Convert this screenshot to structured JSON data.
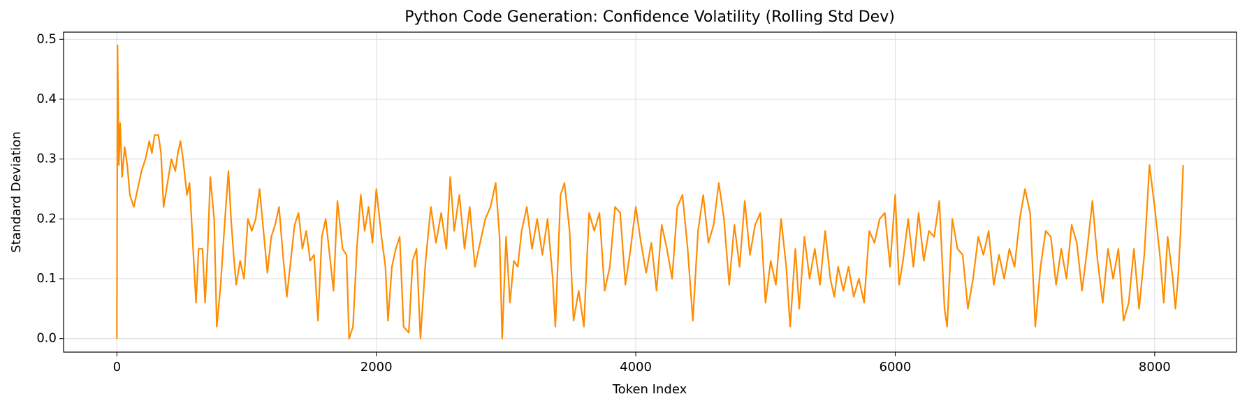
{
  "chart_data": {
    "type": "line",
    "title": "Python Code Generation: Confidence Volatility (Rolling Std Dev)",
    "x_label": "Token Index",
    "y_label": "Standard Deviation",
    "color": "#ff8c00",
    "grid": true,
    "xlim": [
      -411,
      8631
    ],
    "ylim": [
      -0.0225,
      0.512
    ],
    "xticks": [
      0,
      2000,
      4000,
      6000,
      8000
    ],
    "yticks": [
      {
        "value": 0,
        "label": "0.0"
      },
      0.1,
      0.2,
      0.3,
      0.4,
      0.5
    ],
    "x": [
      0,
      5,
      15,
      25,
      40,
      60,
      80,
      100,
      130,
      160,
      190,
      220,
      250,
      270,
      290,
      320,
      340,
      360,
      390,
      420,
      450,
      470,
      490,
      510,
      540,
      560,
      580,
      610,
      630,
      660,
      680,
      700,
      720,
      750,
      770,
      800,
      830,
      860,
      880,
      900,
      920,
      950,
      980,
      1010,
      1040,
      1070,
      1100,
      1130,
      1160,
      1190,
      1220,
      1250,
      1280,
      1310,
      1340,
      1370,
      1400,
      1430,
      1460,
      1490,
      1520,
      1550,
      1580,
      1610,
      1640,
      1670,
      1700,
      1740,
      1770,
      1790,
      1820,
      1850,
      1880,
      1910,
      1940,
      1970,
      2000,
      2040,
      2070,
      2090,
      2120,
      2150,
      2180,
      2210,
      2250,
      2280,
      2310,
      2340,
      2380,
      2420,
      2460,
      2500,
      2540,
      2570,
      2600,
      2640,
      2680,
      2720,
      2760,
      2800,
      2840,
      2880,
      2920,
      2950,
      2970,
      3000,
      3030,
      3060,
      3090,
      3120,
      3160,
      3200,
      3240,
      3280,
      3320,
      3360,
      3380,
      3420,
      3450,
      3490,
      3520,
      3560,
      3600,
      3640,
      3680,
      3720,
      3760,
      3800,
      3840,
      3880,
      3920,
      3960,
      4000,
      4040,
      4080,
      4120,
      4160,
      4200,
      4240,
      4280,
      4320,
      4360,
      4400,
      4440,
      4480,
      4520,
      4560,
      4600,
      4640,
      4680,
      4720,
      4760,
      4800,
      4840,
      4880,
      4920,
      4960,
      5000,
      5040,
      5080,
      5120,
      5160,
      5190,
      5230,
      5260,
      5300,
      5340,
      5380,
      5420,
      5460,
      5500,
      5530,
      5560,
      5600,
      5640,
      5680,
      5720,
      5760,
      5800,
      5840,
      5880,
      5920,
      5960,
      6000,
      6030,
      6060,
      6100,
      6140,
      6180,
      6220,
      6260,
      6300,
      6340,
      6380,
      6400,
      6440,
      6480,
      6520,
      6560,
      6600,
      6640,
      6680,
      6720,
      6760,
      6800,
      6840,
      6880,
      6920,
      6960,
      7000,
      7040,
      7080,
      7120,
      7160,
      7200,
      7240,
      7280,
      7320,
      7360,
      7400,
      7440,
      7480,
      7520,
      7560,
      7600,
      7640,
      7680,
      7720,
      7760,
      7800,
      7840,
      7880,
      7920,
      7960,
      8000,
      8040,
      8070,
      8100,
      8140,
      8160,
      8180,
      8200,
      8220
    ],
    "values": [
      0.0,
      0.49,
      0.29,
      0.36,
      0.27,
      0.32,
      0.29,
      0.24,
      0.22,
      0.25,
      0.28,
      0.3,
      0.33,
      0.31,
      0.34,
      0.34,
      0.31,
      0.22,
      0.26,
      0.3,
      0.28,
      0.31,
      0.33,
      0.3,
      0.24,
      0.26,
      0.18,
      0.06,
      0.15,
      0.15,
      0.06,
      0.15,
      0.27,
      0.2,
      0.02,
      0.09,
      0.19,
      0.28,
      0.2,
      0.14,
      0.09,
      0.13,
      0.1,
      0.2,
      0.18,
      0.2,
      0.25,
      0.18,
      0.11,
      0.17,
      0.19,
      0.22,
      0.14,
      0.07,
      0.13,
      0.19,
      0.21,
      0.15,
      0.18,
      0.13,
      0.14,
      0.03,
      0.17,
      0.2,
      0.14,
      0.08,
      0.23,
      0.15,
      0.14,
      0.0,
      0.02,
      0.15,
      0.24,
      0.18,
      0.22,
      0.16,
      0.25,
      0.17,
      0.12,
      0.03,
      0.12,
      0.15,
      0.17,
      0.02,
      0.01,
      0.13,
      0.15,
      0.0,
      0.13,
      0.22,
      0.16,
      0.21,
      0.15,
      0.27,
      0.18,
      0.24,
      0.15,
      0.22,
      0.12,
      0.16,
      0.2,
      0.22,
      0.26,
      0.17,
      0.0,
      0.17,
      0.06,
      0.13,
      0.12,
      0.18,
      0.22,
      0.15,
      0.2,
      0.14,
      0.2,
      0.1,
      0.02,
      0.24,
      0.26,
      0.18,
      0.03,
      0.08,
      0.02,
      0.21,
      0.18,
      0.21,
      0.08,
      0.12,
      0.22,
      0.21,
      0.09,
      0.15,
      0.22,
      0.16,
      0.11,
      0.16,
      0.08,
      0.19,
      0.15,
      0.1,
      0.22,
      0.24,
      0.15,
      0.03,
      0.18,
      0.24,
      0.16,
      0.19,
      0.26,
      0.2,
      0.09,
      0.19,
      0.12,
      0.23,
      0.14,
      0.19,
      0.21,
      0.06,
      0.13,
      0.09,
      0.2,
      0.12,
      0.02,
      0.15,
      0.05,
      0.17,
      0.1,
      0.15,
      0.09,
      0.18,
      0.1,
      0.07,
      0.12,
      0.08,
      0.12,
      0.07,
      0.1,
      0.06,
      0.18,
      0.16,
      0.2,
      0.21,
      0.12,
      0.24,
      0.09,
      0.13,
      0.2,
      0.12,
      0.21,
      0.13,
      0.18,
      0.17,
      0.23,
      0.05,
      0.02,
      0.2,
      0.15,
      0.14,
      0.05,
      0.1,
      0.17,
      0.14,
      0.18,
      0.09,
      0.14,
      0.1,
      0.15,
      0.12,
      0.2,
      0.25,
      0.21,
      0.02,
      0.12,
      0.18,
      0.17,
      0.09,
      0.15,
      0.1,
      0.19,
      0.16,
      0.08,
      0.15,
      0.23,
      0.13,
      0.06,
      0.15,
      0.1,
      0.15,
      0.03,
      0.06,
      0.15,
      0.05,
      0.14,
      0.29,
      0.22,
      0.14,
      0.06,
      0.17,
      0.1,
      0.05,
      0.1,
      0.18,
      0.29
    ]
  }
}
